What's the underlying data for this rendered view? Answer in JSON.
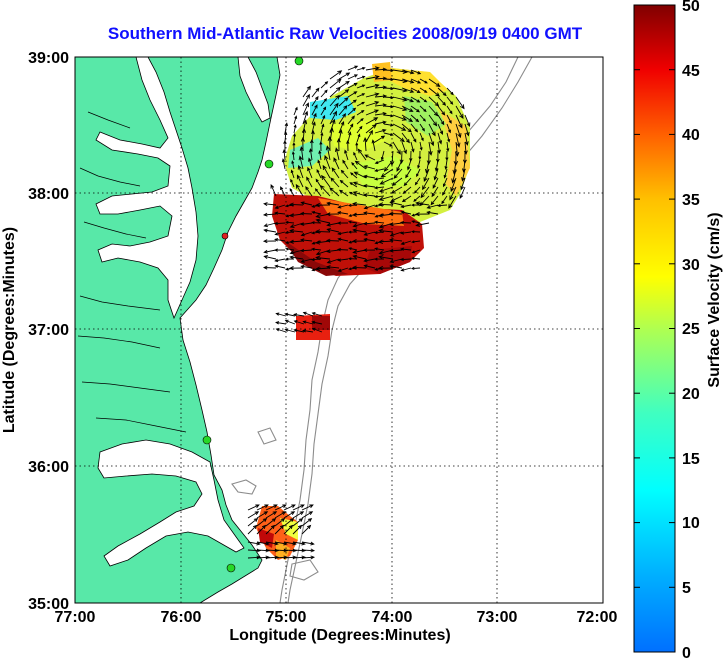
{
  "title": "Southern Mid-Atlantic Raw Velocities 2008/09/19 0400 GMT",
  "map": {
    "x_label": "Longitude (Degrees:Minutes)",
    "y_label": "Latitude (Degrees:Minutes)",
    "x_ticks": [
      "77:00",
      "76:00",
      "75:00",
      "74:00",
      "73:00",
      "72:00"
    ],
    "y_ticks": [
      "39:00",
      "38:00",
      "37:00",
      "36:00",
      "35:00"
    ],
    "lon_range": [
      -77,
      -72
    ],
    "lat_range": [
      35,
      39
    ],
    "land_color": "#58e8a8",
    "land_edge_color": "#000000",
    "bathymetry_color": "#8c8c8c",
    "arrow_color": "#000000",
    "station_color": "#27d827",
    "grid": "dotted"
  },
  "colorbar": {
    "label": "Surface Velocity (cm/s)",
    "ticks": [
      "0",
      "5",
      "10",
      "15",
      "20",
      "25",
      "30",
      "35",
      "40",
      "45",
      "50"
    ],
    "range": [
      0,
      50
    ],
    "colormap": "jet"
  }
}
